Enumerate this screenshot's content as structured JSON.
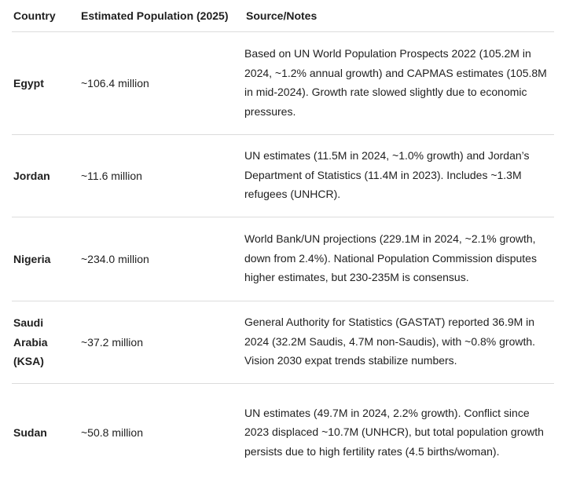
{
  "table": {
    "headers": {
      "country": "Country",
      "population": "Estimated Population (2025)",
      "notes": "Source/Notes"
    },
    "rows": [
      {
        "country": "Egypt",
        "population": "~106.4 million",
        "notes": "Based on UN World Population Prospects 2022 (105.2M in 2024, ~1.2% annual growth) and CAPMAS estimates (105.8M in mid-2024). Growth rate slowed slightly due to economic pressures."
      },
      {
        "country": "Jordan",
        "population": "~11.6 million",
        "notes": "UN estimates (11.5M in 2024, ~1.0% growth) and Jordan’s Department of Statistics (11.4M in 2023). Includes ~1.3M refugees (UNHCR)."
      },
      {
        "country": "Nigeria",
        "population": "~234.0 million",
        "notes": "World Bank/UN projections (229.1M in 2024, ~2.1% growth, down from 2.4%). National Population Commission disputes higher estimates, but 230-235M is consensus."
      },
      {
        "country": "Saudi Arabia (KSA)",
        "population": "~37.2 million",
        "notes": "General Authority for Statistics (GASTAT) reported 36.9M in 2024 (32.2M Saudis, 4.7M non-Saudis), with ~0.8% growth. Vision 2030 expat trends stabilize numbers."
      },
      {
        "country": "Sudan",
        "population": "~50.8 million",
        "notes": "UN estimates (49.7M in 2024, 2.2% growth). Conflict since 2023 displaced ~10.7M (UNHCR), but total population growth persists due to high fertility rates (4.5 births/woman)."
      }
    ]
  }
}
